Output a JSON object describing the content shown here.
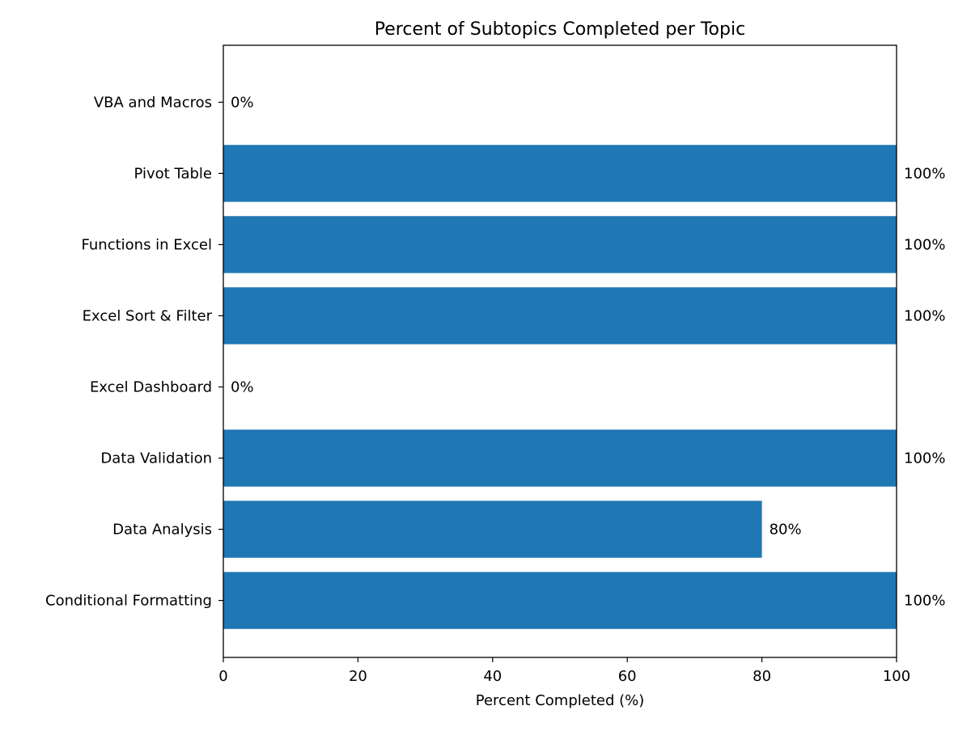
{
  "chart_data": {
    "type": "bar",
    "orientation": "horizontal",
    "title": "Percent of Subtopics Completed per Topic",
    "xlabel": "Percent Completed (%)",
    "ylabel": "",
    "xlim": [
      0,
      100
    ],
    "xticks": [
      0,
      20,
      40,
      60,
      80,
      100
    ],
    "categories": [
      "Conditional Formatting",
      "Data Analysis",
      "Data Validation",
      "Excel Dashboard",
      "Excel Sort & Filter",
      "Functions in Excel",
      "Pivot Table",
      "VBA and Macros"
    ],
    "values": [
      100,
      80,
      100,
      0,
      100,
      100,
      100,
      0
    ],
    "value_labels": [
      "100%",
      "80%",
      "100%",
      "0%",
      "100%",
      "100%",
      "100%",
      "0%"
    ],
    "bar_color": "#1f77b4",
    "grid": false,
    "legend": "none"
  }
}
